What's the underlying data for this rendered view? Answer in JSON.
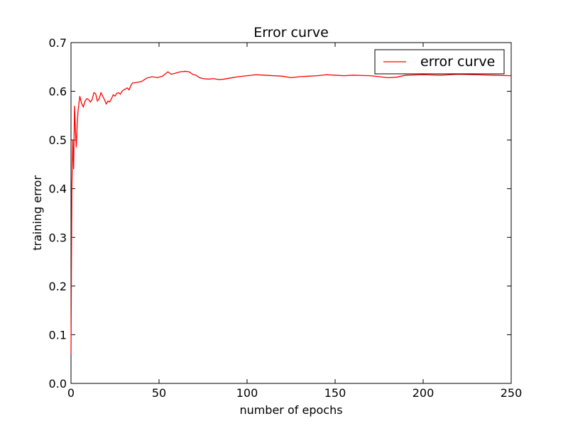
{
  "chart_data": {
    "type": "line",
    "title": "Error curve",
    "xlabel": "number of epochs",
    "ylabel": "training error",
    "xlim": [
      0,
      250
    ],
    "ylim": [
      0.0,
      0.7
    ],
    "xticks": [
      0,
      50,
      100,
      150,
      200,
      250
    ],
    "xtick_labels": [
      "0",
      "50",
      "100",
      "150",
      "200",
      "250"
    ],
    "yticks": [
      0.0,
      0.1,
      0.2,
      0.3,
      0.4,
      0.5,
      0.6,
      0.7
    ],
    "ytick_labels": [
      "0.0",
      "0.1",
      "0.2",
      "0.3",
      "0.4",
      "0.5",
      "0.6",
      "0.7"
    ],
    "grid": false,
    "legend_position": "top-right",
    "series": [
      {
        "name": "error curve",
        "color": "#ff0000",
        "x": [
          0,
          0.5,
          1,
          1.5,
          2,
          2.5,
          3,
          3.5,
          4,
          5,
          6,
          7,
          8,
          9,
          10,
          11,
          12,
          13,
          14,
          15,
          16,
          17,
          18,
          19,
          20,
          21,
          22,
          23,
          24,
          25,
          26,
          27,
          28,
          29,
          30,
          31,
          32,
          33,
          34,
          35,
          37,
          40,
          43,
          46,
          49,
          52,
          55,
          57,
          59,
          62,
          65,
          67,
          69,
          71,
          73,
          75,
          78,
          81,
          84,
          87,
          90,
          95,
          100,
          105,
          110,
          115,
          120,
          125,
          130,
          135,
          140,
          145,
          150,
          155,
          160,
          170,
          180,
          185,
          190,
          200,
          210,
          220,
          230,
          240,
          250
        ],
        "y": [
          0.06,
          0.4,
          0.5,
          0.44,
          0.57,
          0.52,
          0.485,
          0.53,
          0.56,
          0.59,
          0.575,
          0.568,
          0.58,
          0.585,
          0.583,
          0.578,
          0.583,
          0.597,
          0.595,
          0.58,
          0.585,
          0.597,
          0.59,
          0.583,
          0.574,
          0.58,
          0.578,
          0.585,
          0.593,
          0.59,
          0.596,
          0.597,
          0.594,
          0.6,
          0.603,
          0.605,
          0.607,
          0.603,
          0.612,
          0.617,
          0.618,
          0.62,
          0.627,
          0.63,
          0.628,
          0.631,
          0.64,
          0.635,
          0.637,
          0.64,
          0.641,
          0.64,
          0.635,
          0.633,
          0.628,
          0.626,
          0.625,
          0.626,
          0.624,
          0.625,
          0.627,
          0.63,
          0.632,
          0.634,
          0.633,
          0.632,
          0.631,
          0.628,
          0.63,
          0.631,
          0.632,
          0.634,
          0.633,
          0.632,
          0.633,
          0.632,
          0.628,
          0.629,
          0.633,
          0.634,
          0.633,
          0.635,
          0.634,
          0.633,
          0.632
        ]
      }
    ]
  }
}
